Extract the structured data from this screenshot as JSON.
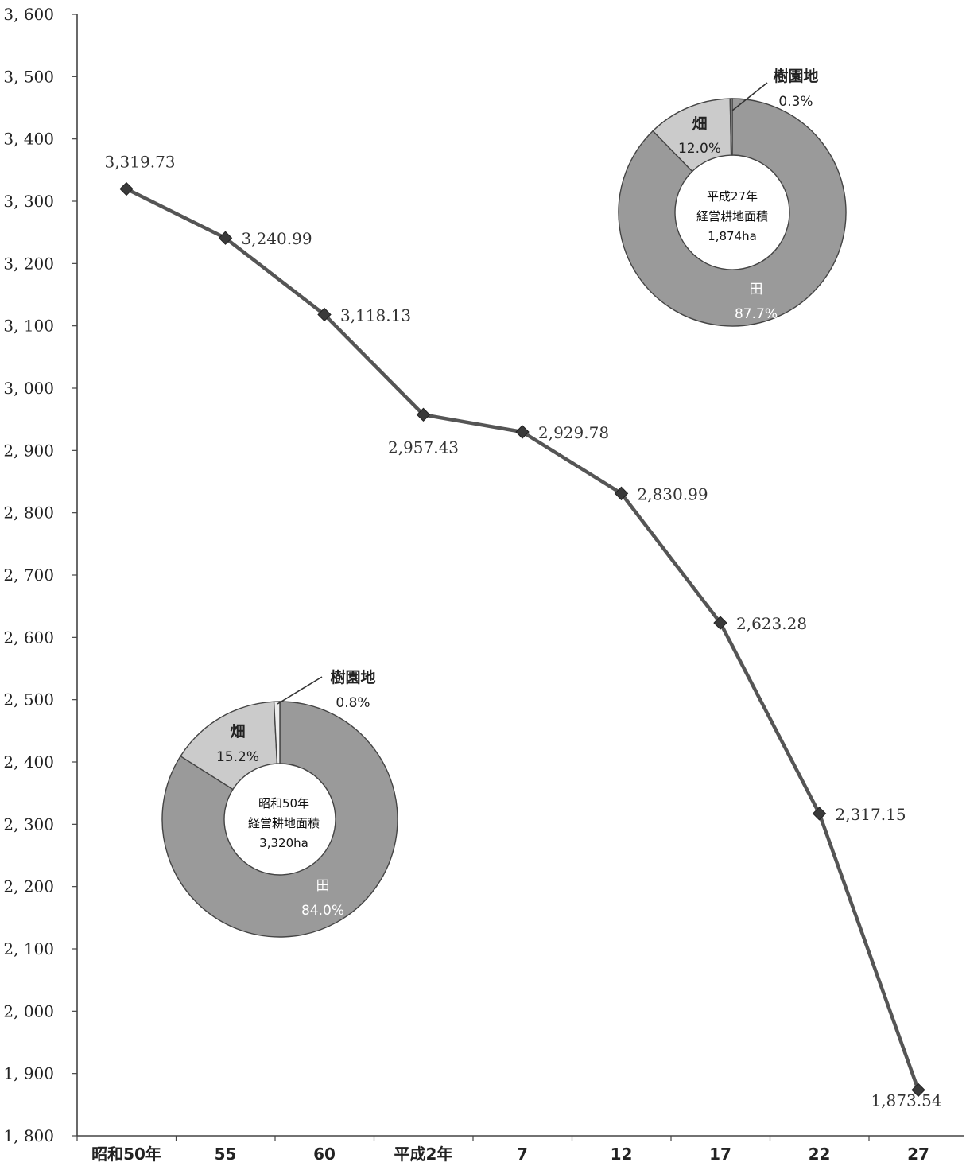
{
  "colors": {
    "line": "#555555",
    "marker": "#3a3a3a",
    "axis": "#444444",
    "paddy": "#9a9a9a",
    "field": "#cbcbcb",
    "orchard": "#eeeeee",
    "ring_stroke": "#444444"
  },
  "chart_data": {
    "type": "line",
    "categories": [
      "昭和50年",
      "55",
      "60",
      "平成2年",
      "7",
      "12",
      "17",
      "22",
      "27"
    ],
    "y_tick_labels": [
      "1, 800",
      "1, 900",
      "2, 000",
      "2, 100",
      "2, 200",
      "2, 300",
      "2, 400",
      "2, 500",
      "2, 600",
      "2, 700",
      "2, 800",
      "2, 900",
      "3, 000",
      "3, 100",
      "3, 200",
      "3, 300",
      "3, 400",
      "3, 500",
      "3, 600"
    ],
    "ylim": [
      1800,
      3600
    ],
    "grid": false,
    "series": [
      {
        "values": [
          3319.73,
          3240.99,
          3118.13,
          2957.43,
          2929.78,
          2830.99,
          2623.28,
          2317.15,
          1873.54
        ],
        "labels": [
          "3,319.73",
          "3,240.99",
          "3,118.13",
          "2,957.43",
          "2,929.78",
          "2,830.99",
          "2,623.28",
          "2,317.15",
          "1,873.54"
        ]
      }
    ],
    "insets": [
      {
        "type": "donut",
        "center": [
          "昭和50年",
          "経営耕地面積",
          "3,320ha"
        ],
        "slices": [
          {
            "key": "paddy",
            "name": "田",
            "value": 84.0,
            "label": "84.0%"
          },
          {
            "key": "field",
            "name": "畑",
            "value": 15.2,
            "label": "15.2%"
          },
          {
            "key": "orchard",
            "name": "樹園地",
            "value": 0.8,
            "label": "0.8%"
          }
        ]
      },
      {
        "type": "donut",
        "center": [
          "平成27年",
          "経営耕地面積",
          "1,874ha"
        ],
        "slices": [
          {
            "key": "paddy",
            "name": "田",
            "value": 87.7,
            "label": "87.7%"
          },
          {
            "key": "field",
            "name": "畑",
            "value": 12.0,
            "label": "12.0%"
          },
          {
            "key": "orchard",
            "name": "樹園地",
            "value": 0.3,
            "label": "0.3%"
          }
        ]
      }
    ]
  }
}
